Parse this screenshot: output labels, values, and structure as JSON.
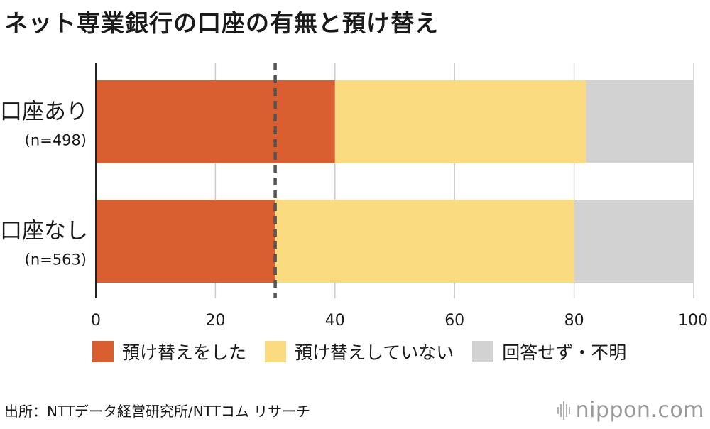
{
  "title": "ネット専業銀行の口座の有無と預け替え",
  "chart_data": {
    "type": "bar",
    "orientation": "horizontal",
    "stacked": true,
    "categories": [
      {
        "label": "口座あり",
        "sublabel": "(n=498)"
      },
      {
        "label": "口座なし",
        "sublabel": "(n=563)"
      }
    ],
    "series": [
      {
        "name": "預け替えをした",
        "color": "#d95f30",
        "values": [
          40,
          30
        ]
      },
      {
        "name": "預け替えしていない",
        "color": "#fadb7f",
        "values": [
          42,
          50
        ]
      },
      {
        "name": "回答せず・不明",
        "color": "#d2d2d2",
        "values": [
          18,
          20
        ]
      }
    ],
    "xlim": [
      0,
      100
    ],
    "xticks": [
      0,
      20,
      40,
      60,
      80,
      100
    ],
    "unit": "(%)",
    "reference_line": 30,
    "grid": true,
    "legend_position": "bottom"
  },
  "source": "出所：NTTデータ経営研究所/NTTコム リサーチ",
  "brand": "nippon.com",
  "colors": {
    "grid": "#cccccc",
    "axis": "#222222",
    "reference": "#555555",
    "brand": "#9a9a9a"
  }
}
